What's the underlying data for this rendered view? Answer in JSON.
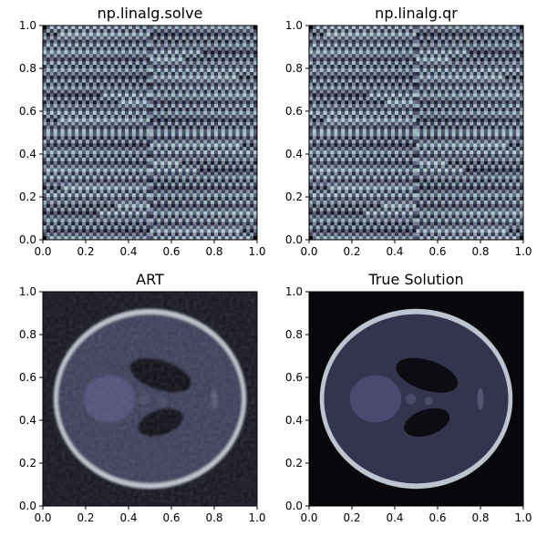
{
  "chart_data": [
    {
      "type": "heatmap",
      "title": "np.linalg.solve",
      "content": "noise",
      "xlim": [
        0.0,
        1.0
      ],
      "ylim": [
        0.0,
        1.0
      ],
      "xticks": [
        "0.0",
        "0.2",
        "0.4",
        "0.6",
        "0.8",
        "1.0"
      ],
      "yticks": [
        "0.0",
        "0.2",
        "0.4",
        "0.6",
        "0.8",
        "1.0"
      ],
      "colormap": "bone"
    },
    {
      "type": "heatmap",
      "title": "np.linalg.qr",
      "content": "noise",
      "xlim": [
        0.0,
        1.0
      ],
      "ylim": [
        0.0,
        1.0
      ],
      "xticks": [
        "0.0",
        "0.2",
        "0.4",
        "0.6",
        "0.8",
        "1.0"
      ],
      "yticks": [
        "0.0",
        "0.2",
        "0.4",
        "0.6",
        "0.8",
        "1.0"
      ],
      "colormap": "bone"
    },
    {
      "type": "heatmap",
      "title": "ART",
      "content": "phantom-reconstruction",
      "xlim": [
        0.0,
        1.0
      ],
      "ylim": [
        0.0,
        1.0
      ],
      "xticks": [
        "0.0",
        "0.2",
        "0.4",
        "0.6",
        "0.8",
        "1.0"
      ],
      "yticks": [
        "0.0",
        "0.2",
        "0.4",
        "0.6",
        "0.8",
        "1.0"
      ],
      "colormap": "bone"
    },
    {
      "type": "heatmap",
      "title": "True Solution",
      "content": "phantom",
      "xlim": [
        0.0,
        1.0
      ],
      "ylim": [
        0.0,
        1.0
      ],
      "xticks": [
        "0.0",
        "0.2",
        "0.4",
        "0.6",
        "0.8",
        "1.0"
      ],
      "yticks": [
        "0.0",
        "0.2",
        "0.4",
        "0.6",
        "0.8",
        "1.0"
      ],
      "colormap": "bone"
    }
  ]
}
